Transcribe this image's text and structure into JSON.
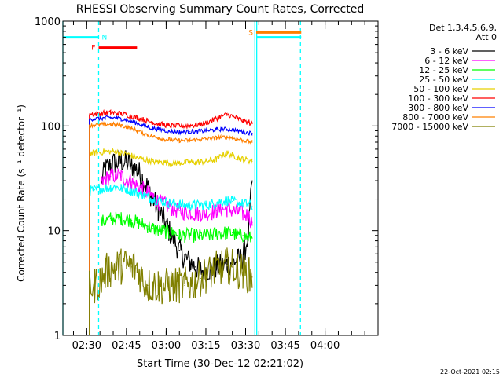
{
  "chart_data": {
    "type": "line",
    "title": "RHESSI Observing Summary Count Rates, Corrected",
    "xlabel": "Start Time (30-Dec-12 02:21:02)",
    "ylabel": "Corrected Count Rate (s⁻¹ detector⁻¹)",
    "footer": "22-Oct-2021 02:15",
    "y_scale": "log",
    "ylim": [
      1,
      1000
    ],
    "xlim_minutes": [
      0,
      119
    ],
    "x_ticks": [
      {
        "label": "02:30",
        "minute": 9
      },
      {
        "label": "02:45",
        "minute": 24
      },
      {
        "label": "03:00",
        "minute": 39
      },
      {
        "label": "03:15",
        "minute": 54
      },
      {
        "label": "03:30",
        "minute": 69
      },
      {
        "label": "03:45",
        "minute": 84
      },
      {
        "label": "04:00",
        "minute": 99
      }
    ],
    "y_ticks": [
      {
        "label": "1",
        "value": 1
      },
      {
        "label": "10",
        "value": 10
      },
      {
        "label": "100",
        "value": 100
      },
      {
        "label": "1000",
        "value": 1000
      }
    ],
    "legend_header": [
      "Det 1,3,4,5,6,9,",
      "Att 0"
    ],
    "series": [
      {
        "name": "3 - 6 keV",
        "color": "#000000",
        "x": [
          14.5,
          16,
          18,
          20,
          22,
          24,
          26,
          28,
          30,
          32,
          34,
          36,
          38,
          40,
          42,
          44,
          46,
          48,
          50,
          52,
          54,
          56,
          58,
          60,
          62,
          64,
          66,
          68,
          70,
          71.5
        ],
        "y": [
          30,
          38,
          42,
          45,
          46,
          45,
          42,
          38,
          32,
          26,
          20,
          16,
          13,
          10,
          8,
          6.5,
          5.5,
          5,
          4.5,
          4.2,
          4.2,
          4.3,
          4.5,
          4.6,
          4.8,
          5,
          5.2,
          5.5,
          9,
          30
        ]
      },
      {
        "name": "6 - 12 keV",
        "color": "#ff00ff",
        "x": [
          14.5,
          16,
          18,
          20,
          22,
          24,
          26,
          28,
          30,
          32,
          34,
          36,
          38,
          40,
          42,
          44,
          46,
          48,
          50,
          52,
          54,
          56,
          58,
          60,
          62,
          64,
          66,
          68,
          70,
          71.5
        ],
        "y": [
          28,
          31,
          33,
          34,
          33,
          31,
          29,
          27,
          25,
          23,
          21,
          19,
          18,
          17,
          16,
          15.5,
          15,
          15,
          14.5,
          14.5,
          14.5,
          15,
          15.5,
          16,
          16,
          15.5,
          15,
          14.5,
          14,
          12
        ]
      },
      {
        "name": "12 - 25 keV",
        "color": "#00ff00",
        "x": [
          14.5,
          16,
          18,
          20,
          22,
          24,
          26,
          28,
          30,
          32,
          34,
          36,
          38,
          40,
          42,
          44,
          46,
          48,
          50,
          52,
          54,
          56,
          58,
          60,
          62,
          64,
          66,
          68,
          70,
          71.5
        ],
        "y": [
          12,
          12.5,
          13,
          13,
          13,
          13,
          12.5,
          12,
          11.5,
          11,
          10.5,
          10,
          10,
          9.5,
          9.5,
          9,
          9,
          9,
          9,
          9,
          9,
          9,
          9.5,
          9.5,
          9.5,
          9.5,
          9,
          9,
          8.5,
          8.5
        ]
      },
      {
        "name": "25 - 50 keV",
        "color": "#00ffff",
        "x": [
          10,
          12,
          14,
          16,
          18,
          20,
          22,
          24,
          26,
          28,
          30,
          32,
          34,
          36,
          38,
          40,
          42,
          44,
          46,
          48,
          50,
          52,
          54,
          56,
          58,
          60,
          62,
          64,
          66,
          68,
          70,
          71.5
        ],
        "y": [
          24,
          24.5,
          25,
          25.5,
          26,
          26,
          25.5,
          25,
          24,
          23,
          22,
          21,
          20,
          19.5,
          19,
          18.5,
          18,
          18,
          17.5,
          17.5,
          17.5,
          17.5,
          17.5,
          18,
          18.5,
          19,
          19.5,
          19,
          18.5,
          18,
          18,
          17
        ]
      },
      {
        "name": "50 - 100 keV",
        "color": "#e6d000",
        "x": [
          10,
          12,
          14,
          16,
          18,
          20,
          22,
          24,
          26,
          28,
          30,
          32,
          34,
          36,
          38,
          40,
          42,
          44,
          46,
          48,
          50,
          52,
          54,
          56,
          58,
          60,
          62,
          64,
          66,
          68,
          70,
          71.5
        ],
        "y": [
          55,
          55,
          56,
          57,
          57,
          56,
          55,
          54,
          52,
          50,
          48,
          47,
          46,
          45,
          45,
          44.5,
          44.5,
          44.5,
          44.5,
          45,
          45,
          45.5,
          46,
          47,
          48,
          52,
          55,
          53,
          50,
          48,
          47,
          46
        ]
      },
      {
        "name": "100 - 300 keV",
        "color": "#ff0000",
        "x": [
          10,
          12,
          14,
          16,
          18,
          20,
          22,
          24,
          26,
          28,
          30,
          32,
          34,
          36,
          38,
          40,
          42,
          44,
          46,
          48,
          50,
          52,
          54,
          56,
          58,
          60,
          62,
          64,
          66,
          68,
          70,
          71.5
        ],
        "y": [
          130,
          130,
          131,
          133,
          134,
          133,
          131,
          128,
          124,
          120,
          116,
          112,
          108,
          105,
          103,
          101,
          100,
          100,
          100,
          101,
          102,
          104,
          107,
          112,
          118,
          125,
          128,
          124,
          118,
          112,
          108,
          105
        ]
      },
      {
        "name": "300 - 800 keV",
        "color": "#0000ff",
        "x": [
          10,
          12,
          14,
          16,
          18,
          20,
          22,
          24,
          26,
          28,
          30,
          32,
          34,
          36,
          38,
          40,
          42,
          44,
          46,
          48,
          50,
          52,
          54,
          56,
          58,
          60,
          62,
          64,
          66,
          68,
          70,
          71.5
        ],
        "y": [
          116,
          117,
          118,
          119,
          120,
          119,
          117,
          114,
          110,
          106,
          102,
          98,
          95,
          93,
          91,
          89,
          88,
          87.5,
          87.5,
          88,
          88.5,
          89,
          90,
          91,
          92,
          93,
          93,
          92,
          90,
          88,
          86,
          85
        ]
      },
      {
        "name": "800 - 7000 keV",
        "color": "#ff8000",
        "x": [
          10,
          12,
          14,
          16,
          18,
          20,
          22,
          24,
          26,
          28,
          30,
          32,
          34,
          36,
          38,
          40,
          42,
          44,
          46,
          48,
          50,
          52,
          54,
          56,
          58,
          60,
          62,
          64,
          66,
          68,
          70,
          71.5
        ],
        "y": [
          102,
          102,
          103,
          104,
          104,
          103,
          101,
          98,
          94,
          90,
          86,
          82,
          79,
          77,
          75,
          74,
          73,
          72.5,
          72.5,
          73,
          73.5,
          74,
          75,
          76,
          77,
          78,
          78,
          77,
          75,
          73,
          71,
          70
        ]
      },
      {
        "name": "7000 - 15000 keV",
        "color": "#808000",
        "x": [
          10,
          12,
          14,
          16,
          18,
          20,
          22,
          24,
          26,
          28,
          30,
          32,
          34,
          36,
          38,
          40,
          42,
          44,
          46,
          48,
          50,
          52,
          54,
          56,
          58,
          60,
          62,
          64,
          66,
          68,
          70,
          71.5
        ],
        "y": [
          3,
          3,
          3.3,
          4,
          4.3,
          4.5,
          4.6,
          4.6,
          4.5,
          4.4,
          3.5,
          3,
          3,
          3,
          2.9,
          3,
          3,
          3,
          3,
          3.1,
          3.3,
          3.5,
          3.8,
          4,
          4.3,
          4.5,
          4.6,
          4.5,
          4.2,
          4,
          3.8,
          3.6
        ]
      }
    ],
    "annotations": [
      {
        "text": "N",
        "color": "#00ffff",
        "x_minute": 13.5,
        "level": 700,
        "line": "dashed-vertical"
      },
      {
        "text": "F",
        "color": "#ff0000",
        "x_start": 13.5,
        "x_end": 28,
        "level": 560
      },
      {
        "text": "S",
        "color": "#ff8000",
        "x_start": 73,
        "x_end": 90,
        "level": 780
      },
      {
        "text": "",
        "color": "#00ffff",
        "x_start": 0,
        "x_end": 13.5,
        "level": 700
      },
      {
        "text": "",
        "color": "#00ffff",
        "x_start": 73,
        "x_end": 90,
        "level": 700
      }
    ],
    "vertical_lines": [
      {
        "x_minute": 0,
        "style": "solid",
        "color": "#00ffff"
      },
      {
        "x_minute": 13.5,
        "style": "dashed",
        "color": "#00ffff"
      },
      {
        "x_minute": 72.5,
        "style": "solid",
        "color": "#00ffff"
      },
      {
        "x_minute": 73.2,
        "style": "solid",
        "color": "#00ffff"
      },
      {
        "x_minute": 89.7,
        "style": "dashed",
        "color": "#00ffff"
      }
    ],
    "legend_position": "right",
    "grid": false
  }
}
